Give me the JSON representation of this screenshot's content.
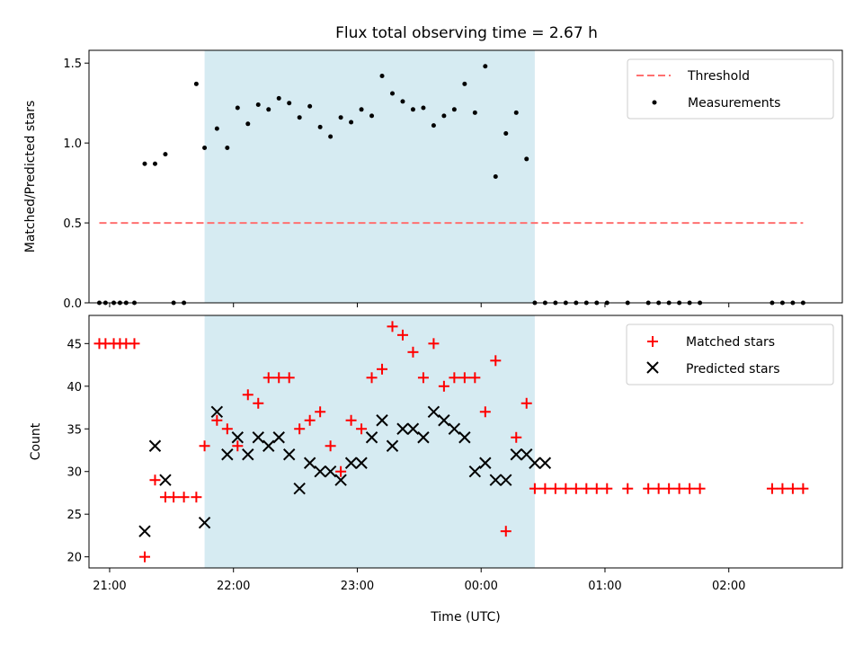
{
  "chart_data": [
    {
      "type": "scatter",
      "title": "Flux total observing time = 2.67 h",
      "ylabel": "Matched/Predicted stars",
      "xlabel": "",
      "xlim": [
        "20:50",
        "02:55"
      ],
      "ylim": [
        0,
        1.58
      ],
      "yticks": [
        0.0,
        0.5,
        1.0,
        1.5
      ],
      "ytick_labels": [
        "0.0",
        "0.5",
        "1.0",
        "1.5"
      ],
      "shaded_interval": [
        "21:46",
        "00:26"
      ],
      "shade_color": "#add8e6",
      "legend_position": "top-right",
      "threshold": {
        "name": "Threshold",
        "value": 0.5,
        "x_start": "20:55",
        "x_end": "02:36",
        "color": "#ff7070"
      },
      "series": [
        {
          "name": "Measurements",
          "color": "#000000",
          "x": [
            "20:55",
            "20:58",
            "21:02",
            "21:05",
            "21:08",
            "21:12",
            "21:17",
            "21:22",
            "21:27",
            "21:31",
            "21:36",
            "21:42",
            "21:46",
            "21:52",
            "21:57",
            "22:02",
            "22:07",
            "22:12",
            "22:17",
            "22:22",
            "22:27",
            "22:32",
            "22:37",
            "22:42",
            "22:47",
            "22:52",
            "22:57",
            "23:02",
            "23:07",
            "23:12",
            "23:17",
            "23:22",
            "23:27",
            "23:32",
            "23:37",
            "23:42",
            "23:47",
            "23:52",
            "23:57",
            "24:02",
            "24:07",
            "24:12",
            "24:17",
            "24:22",
            "24:26",
            "24:31",
            "24:36",
            "24:41",
            "24:46",
            "24:51",
            "24:56",
            "25:01",
            "25:11",
            "25:21",
            "25:26",
            "25:31",
            "25:36",
            "25:41",
            "25:46",
            "26:21",
            "26:26",
            "26:31",
            "26:36"
          ],
          "values": [
            0,
            0,
            0,
            0,
            0,
            0,
            0.87,
            0.87,
            0.93,
            0,
            0,
            1.37,
            0.97,
            1.09,
            0.97,
            1.22,
            1.12,
            1.24,
            1.21,
            1.28,
            1.25,
            1.16,
            1.23,
            1.1,
            1.04,
            1.16,
            1.13,
            1.21,
            1.17,
            1.42,
            1.31,
            1.26,
            1.21,
            1.22,
            1.11,
            1.17,
            1.21,
            1.37,
            1.19,
            1.48,
            0.79,
            1.06,
            1.19,
            0.9,
            0,
            0,
            0,
            0,
            0,
            0,
            0,
            0,
            0,
            0,
            0,
            0,
            0,
            0,
            0,
            0,
            0,
            0,
            0
          ]
        }
      ]
    },
    {
      "type": "scatter",
      "title": "",
      "xlabel": "Time (UTC)",
      "ylabel": "Count",
      "xlim": [
        "20:50",
        "02:55"
      ],
      "ylim": [
        18.7,
        48.3
      ],
      "yticks": [
        20,
        25,
        30,
        35,
        40,
        45
      ],
      "ytick_labels": [
        "20",
        "25",
        "30",
        "35",
        "40",
        "45"
      ],
      "xtick_labels": [
        "21:00",
        "22:00",
        "23:00",
        "00:00",
        "01:00",
        "02:00"
      ],
      "shaded_interval": [
        "21:46",
        "00:26"
      ],
      "shade_color": "#add8e6",
      "legend_position": "top-right",
      "series": [
        {
          "name": "Matched stars",
          "marker": "plus",
          "color": "#ff0000",
          "x": [
            "20:55",
            "20:58",
            "21:02",
            "21:05",
            "21:08",
            "21:12",
            "21:17",
            "21:22",
            "21:27",
            "21:31",
            "21:36",
            "21:42",
            "21:46",
            "21:52",
            "21:57",
            "22:02",
            "22:07",
            "22:12",
            "22:17",
            "22:22",
            "22:27",
            "22:32",
            "22:37",
            "22:42",
            "22:47",
            "22:52",
            "22:57",
            "23:02",
            "23:07",
            "23:12",
            "23:17",
            "23:22",
            "23:27",
            "23:32",
            "23:37",
            "23:42",
            "23:47",
            "23:52",
            "23:57",
            "24:02",
            "24:07",
            "24:12",
            "24:17",
            "24:22",
            "24:26",
            "24:31",
            "24:36",
            "24:41",
            "24:46",
            "24:51",
            "24:56",
            "25:01",
            "25:11",
            "25:21",
            "25:26",
            "25:31",
            "25:36",
            "25:41",
            "25:46",
            "26:21",
            "26:26",
            "26:31",
            "26:36"
          ],
          "values": [
            45,
            45,
            45,
            45,
            45,
            45,
            20,
            29,
            27,
            27,
            27,
            27,
            33,
            36,
            35,
            33,
            39,
            38,
            41,
            41,
            41,
            35,
            36,
            37,
            33,
            30,
            36,
            35,
            41,
            42,
            47,
            46,
            44,
            41,
            45,
            40,
            41,
            41,
            41,
            37,
            43,
            23,
            34,
            38,
            28,
            28,
            28,
            28,
            28,
            28,
            28,
            28,
            28,
            28,
            28,
            28,
            28,
            28,
            28,
            28,
            28,
            28,
            28
          ]
        },
        {
          "name": "Predicted stars",
          "marker": "x",
          "color": "#000000",
          "x": [
            "21:17",
            "21:22",
            "21:27",
            "21:46",
            "21:52",
            "21:57",
            "22:02",
            "22:07",
            "22:12",
            "22:17",
            "22:22",
            "22:27",
            "22:32",
            "22:37",
            "22:42",
            "22:47",
            "22:52",
            "22:57",
            "23:02",
            "23:07",
            "23:12",
            "23:17",
            "23:22",
            "23:27",
            "23:32",
            "23:37",
            "23:42",
            "23:47",
            "23:52",
            "23:57",
            "24:02",
            "24:07",
            "24:12",
            "24:17",
            "24:22",
            "24:26",
            "24:31"
          ],
          "values": [
            23,
            33,
            29,
            24,
            37,
            32,
            34,
            32,
            34,
            33,
            34,
            32,
            28,
            31,
            30,
            30,
            29,
            31,
            31,
            34,
            36,
            33,
            35,
            35,
            34,
            37,
            36,
            35,
            34,
            30,
            31,
            29,
            29,
            32,
            32,
            31,
            31
          ]
        }
      ]
    }
  ]
}
